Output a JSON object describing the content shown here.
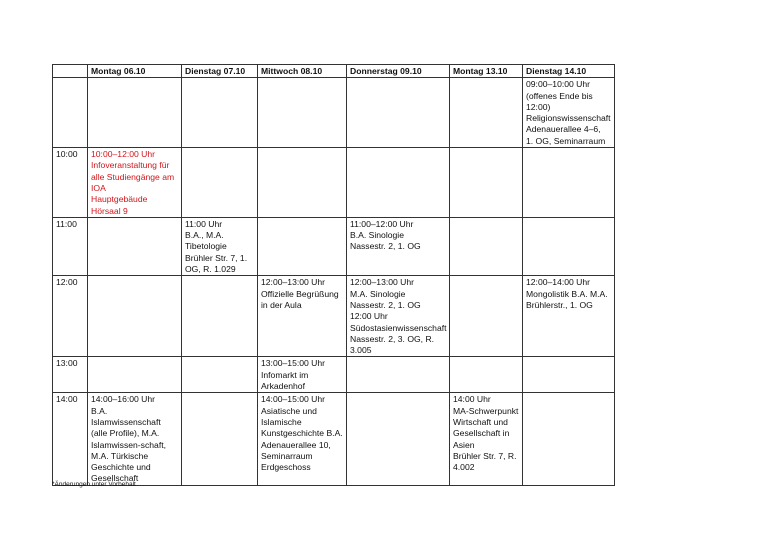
{
  "table": {
    "headers": [
      "",
      "Montag 06.10",
      "Dienstag 07.10",
      "Mittwoch 08.10",
      "Donnerstag 09.10",
      "Montag 13.10",
      "Dienstag 14.10"
    ],
    "rows": [
      {
        "time": "",
        "cells": [
          "",
          "",
          "",
          "",
          "",
          "09:00–10:00 Uhr\n(offenes Ende bis\n12:00)\nReligionswissenschaft\nAdenauerallee 4–6,\n1. OG, Seminarraum"
        ]
      },
      {
        "time": "10:00",
        "cells": [
          "10:00–12:00 Uhr\nInfoveranstaltung für\nalle Studiengänge am\nIOA\nHauptgebäude\nHörsaal 9",
          "",
          "",
          "",
          "",
          ""
        ]
      },
      {
        "time": "11:00",
        "cells": [
          "",
          "11:00 Uhr\nB.A., M.A.\nTibetologie\nBrühler Str. 7, 1.\nOG, R. 1.029",
          "",
          "11:00–12:00 Uhr\nB.A. Sinologie\nNassestr. 2, 1. OG",
          "",
          ""
        ]
      },
      {
        "time": "12:00",
        "cells": [
          "",
          "",
          "12:00–13:00 Uhr\nOffizielle Begrüßung\nin der Aula",
          "12:00–13:00 Uhr\nM.A. Sinologie\nNassestr. 2, 1. OG\n12:00 Uhr\nSüdostasienwissenschaft\nNassestr. 2, 3. OG, R.\n3.005",
          "",
          "12:00–14:00 Uhr\nMongolistik B.A. M.A.\nBrühlerstr., 1. OG"
        ]
      },
      {
        "time": "13:00",
        "cells": [
          "",
          "",
          "13:00–15:00 Uhr\nInfomarkt im\nArkadenhof",
          "",
          "",
          ""
        ]
      },
      {
        "time": "14:00",
        "cells": [
          "14:00–16:00 Uhr\nB.A.\nIslamwissenschaft\n(alle Profile), M.A.\nIslamwissen-schaft,\nM.A. Türkische\nGeschichte und\nGesellschaft",
          "",
          "14:00–15:00 Uhr\nAsiatische und\nIslamische\nKunstgeschichte B.A.\nAdenauerallee 10,\nSeminarraum\nErdgeschoss",
          "",
          "14:00 Uhr\nMA-Schwerpunkt\nWirtschaft und\nGesellschaft in\nAsien\nBrühler Str. 7, R.\n4.002",
          ""
        ]
      }
    ],
    "highlight_color": "#d0161b"
  },
  "footnote": "*Änderungen unter Vorbehalt"
}
